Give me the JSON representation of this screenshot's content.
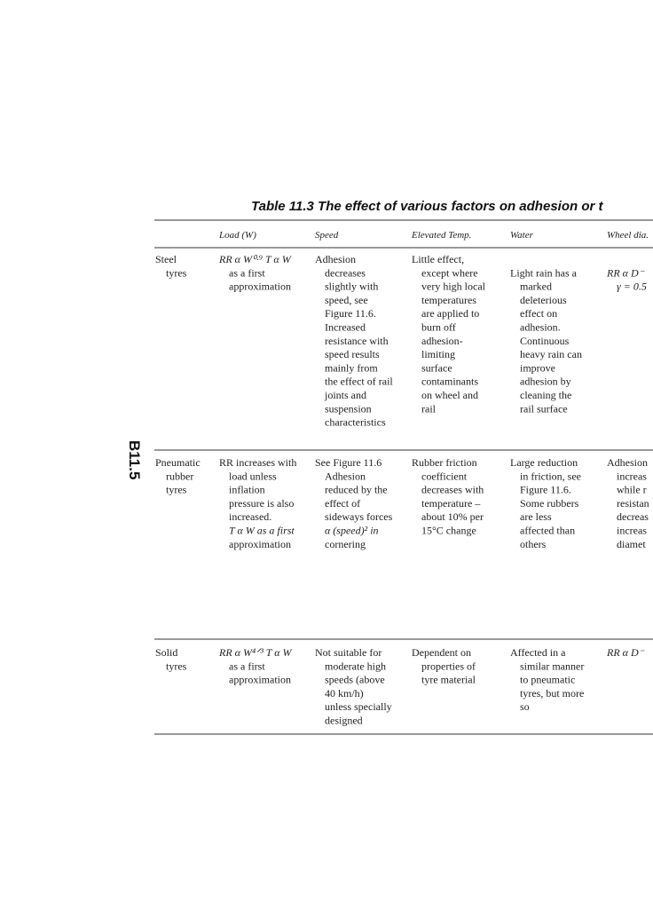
{
  "header": {
    "title": "Table 11.3  The effect of various factors on adhesion or t",
    "side_label": "B11.5"
  },
  "table": {
    "columns": [
      "Load (W)",
      "Speed",
      "Elevated Temp.",
      "Water",
      "Wheel dia."
    ],
    "rows": [
      {
        "label": [
          "Steel",
          "tyres"
        ],
        "cells": [
          [
            "RR α W⁰·⁹ T α W",
            "as a first",
            "approximation"
          ],
          [
            "Adhesion",
            "decreases",
            "slightly with",
            "speed, see",
            "Figure 11.6.",
            "Increased",
            "resistance with",
            "speed results",
            "mainly from",
            "the effect of rail",
            "joints and",
            "suspension",
            "characteristics"
          ],
          [
            "Little effect,",
            "except where",
            "very high local",
            "temperatures",
            "are applied to",
            "burn off",
            "adhesion-",
            "limiting",
            "surface",
            "contaminants",
            "on wheel and",
            "rail"
          ],
          [
            "Light rain has a",
            "marked",
            "deleterious",
            "effect on",
            "adhesion.",
            "Continuous",
            "heavy rain can",
            "improve",
            "adhesion by",
            "cleaning the",
            "rail surface"
          ],
          [
            "RR α D⁻",
            "γ = 0.5"
          ]
        ]
      },
      {
        "label": [
          "Pneumatic",
          "rubber",
          "tyres"
        ],
        "cells": [
          [
            "RR increases with",
            "load unless",
            "inflation",
            "pressure is also",
            "increased.",
            "T α W as a first",
            "approximation"
          ],
          [
            "See Figure 11.6",
            "Adhesion",
            "reduced by the",
            "effect of",
            "sideways forces",
            "α (speed)² in",
            "cornering"
          ],
          [
            "Rubber friction",
            "coefficient",
            "decreases with",
            "temperature –",
            "about 10% per",
            "15°C change"
          ],
          [
            "Large reduction",
            "in friction, see",
            "Figure 11.6.",
            "Some rubbers",
            "are less",
            "affected than",
            "others"
          ],
          [
            "Adhesion",
            "increas",
            "while r",
            "resistan",
            "decreas",
            "increas",
            "diamet"
          ]
        ]
      },
      {
        "label": [
          "Solid",
          "tyres"
        ],
        "cells": [
          [
            "RR α W⁴ᐟ³ T α W",
            "as a first",
            "approximation"
          ],
          [
            "Not suitable for",
            "moderate high",
            "speeds (above",
            "40 km/h)",
            "unless specially",
            "designed"
          ],
          [
            "Dependent on",
            "properties of",
            "tyre material"
          ],
          [
            "Affected in a",
            "similar manner",
            "to pneumatic",
            "tyres, but more",
            "so"
          ],
          [
            "RR α D⁻"
          ]
        ]
      }
    ]
  }
}
